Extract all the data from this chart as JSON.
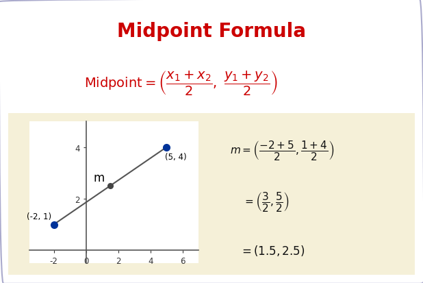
{
  "title": "Midpoint Formula",
  "title_color": "#cc0000",
  "title_fontsize": 20,
  "background_color": "#ffffff",
  "beige_box_color": "#f5f0d8",
  "formula_color": "#cc0000",
  "point1": [
    -2,
    1
  ],
  "point2": [
    5,
    4
  ],
  "midpoint": [
    1.5,
    2.5
  ],
  "point1_label": "(-2, 1)",
  "point2_label": "(5, 4)",
  "midpoint_label": "m",
  "point1_color": "#003399",
  "point2_color": "#003399",
  "midpoint_color": "#444444",
  "line_color": "#555555",
  "axis_color": "#555555",
  "tick_label_color": "#333333",
  "xlim": [
    -3.5,
    7
  ],
  "ylim": [
    -0.5,
    5
  ],
  "xticks": [
    -2,
    0,
    2,
    4,
    6
  ],
  "yticks": [
    2,
    4
  ],
  "calc_color": "#111111",
  "calc_fontsize": 11,
  "border_color": "#aaaacc"
}
